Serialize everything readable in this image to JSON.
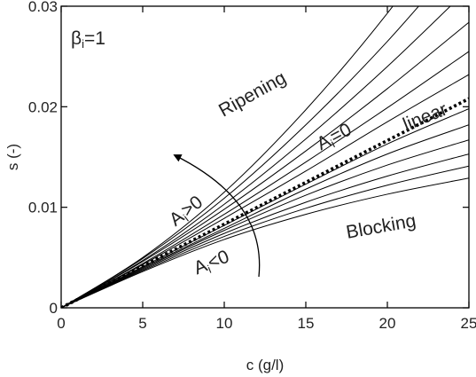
{
  "chart_data": {
    "type": "line",
    "title": "",
    "xlabel": "c (g/l)",
    "ylabel": "s (-)",
    "xlim": [
      0,
      25
    ],
    "ylim": [
      0,
      0.03
    ],
    "grid": false,
    "x_ticks": [
      0,
      5,
      10,
      15,
      20,
      25
    ],
    "x_tick_labels": [
      "0",
      "5",
      "10",
      "15",
      "20",
      "25"
    ],
    "y_ticks": [
      0,
      0.01,
      0.02,
      0.03
    ],
    "y_tick_labels": [
      "0",
      "0.01",
      "0.02",
      "0.03"
    ],
    "series": [
      {
        "name": "linear",
        "style": "dotted",
        "points": [
          [
            0,
            0
          ],
          [
            25,
            0.0208
          ]
        ]
      },
      {
        "style": "solid",
        "points": [
          [
            0,
            0
          ],
          [
            5,
            0.0036
          ],
          [
            10,
            0.0068
          ],
          [
            15,
            0.0093
          ],
          [
            20,
            0.0113
          ],
          [
            25,
            0.0129
          ]
        ]
      },
      {
        "style": "solid",
        "points": [
          [
            0,
            0
          ],
          [
            5,
            0.0037
          ],
          [
            10,
            0.0071
          ],
          [
            15,
            0.0099
          ],
          [
            20,
            0.0122
          ],
          [
            25,
            0.0141
          ]
        ]
      },
      {
        "style": "solid",
        "points": [
          [
            0,
            0
          ],
          [
            5,
            0.0038
          ],
          [
            10,
            0.0074
          ],
          [
            15,
            0.0105
          ],
          [
            20,
            0.0131
          ],
          [
            25,
            0.0153
          ]
        ]
      },
      {
        "style": "solid",
        "points": [
          [
            0,
            0
          ],
          [
            5,
            0.0039
          ],
          [
            10,
            0.0077
          ],
          [
            15,
            0.0112
          ],
          [
            20,
            0.0142
          ],
          [
            25,
            0.0167
          ]
        ]
      },
      {
        "style": "solid",
        "points": [
          [
            0,
            0
          ],
          [
            5,
            0.004
          ],
          [
            10,
            0.0079
          ],
          [
            15,
            0.0118
          ],
          [
            20,
            0.0153
          ],
          [
            25,
            0.0182
          ]
        ]
      },
      {
        "style": "solid",
        "points": [
          [
            0,
            0
          ],
          [
            5,
            0.0041
          ],
          [
            10,
            0.0082
          ],
          [
            15,
            0.0123
          ],
          [
            20,
            0.0163
          ],
          [
            25,
            0.0198
          ]
        ]
      },
      {
        "style": "solid",
        "points": [
          [
            0,
            0
          ],
          [
            5,
            0.0043
          ],
          [
            10,
            0.0089
          ],
          [
            15,
            0.0136
          ],
          [
            20,
            0.0185
          ],
          [
            25,
            0.0232
          ]
        ]
      },
      {
        "style": "solid",
        "points": [
          [
            0,
            0
          ],
          [
            5,
            0.0044
          ],
          [
            10,
            0.0093
          ],
          [
            15,
            0.0145
          ],
          [
            20,
            0.0199
          ],
          [
            25,
            0.0255
          ]
        ]
      },
      {
        "style": "solid",
        "points": [
          [
            0,
            0
          ],
          [
            5,
            0.0046
          ],
          [
            10,
            0.0098
          ],
          [
            15,
            0.0156
          ],
          [
            20,
            0.0218
          ],
          [
            25,
            0.0284
          ]
        ]
      },
      {
        "style": "solid",
        "points": [
          [
            0,
            0
          ],
          [
            5,
            0.0047
          ],
          [
            10,
            0.0103
          ],
          [
            15,
            0.0168
          ],
          [
            20,
            0.024
          ],
          [
            25,
            0.0318
          ]
        ]
      },
      {
        "style": "solid",
        "points": [
          [
            0,
            0
          ],
          [
            5,
            0.0049
          ],
          [
            10,
            0.0109
          ],
          [
            15,
            0.0182
          ],
          [
            20,
            0.0265
          ],
          [
            25,
            0.0358
          ]
        ]
      },
      {
        "style": "solid",
        "points": [
          [
            0,
            0
          ],
          [
            5,
            0.005
          ],
          [
            10,
            0.0115
          ],
          [
            15,
            0.0197
          ],
          [
            20,
            0.0293
          ],
          [
            25,
            0.0403
          ]
        ]
      }
    ],
    "annotations": [
      {
        "name": "beta-label",
        "parts": [
          "β",
          "i",
          "=1"
        ]
      },
      {
        "name": "ripening-label",
        "text": "Ripening"
      },
      {
        "name": "blocking-label",
        "text": "Blocking"
      },
      {
        "name": "linear-label",
        "text": "linear"
      },
      {
        "name": "a-zero-label",
        "parts": [
          "A",
          "i",
          "=0"
        ]
      },
      {
        "name": "a-positive-label",
        "parts": [
          "A",
          "i",
          ">0"
        ]
      },
      {
        "name": "a-negative-label",
        "parts": [
          "A",
          "i",
          "<0"
        ]
      }
    ]
  }
}
